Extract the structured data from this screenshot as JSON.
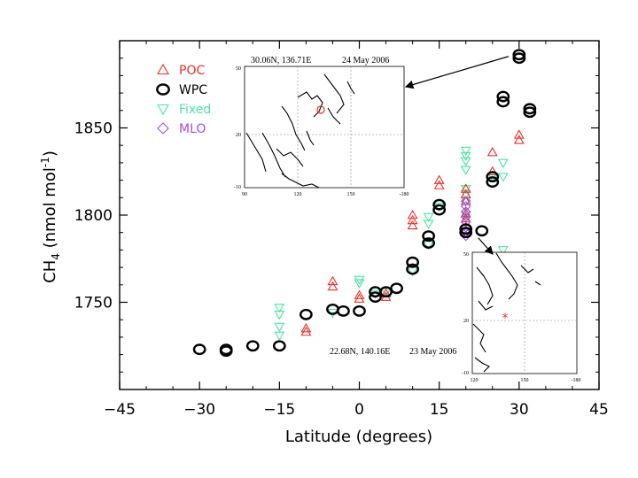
{
  "chart_data": {
    "type": "scatter",
    "xlabel": "Latitude (degrees)",
    "ylabel_main": "CH",
    "ylabel_sub": "4",
    "ylabel_units": " (nmol mol",
    "ylabel_exp": "-1",
    "ylabel_close": ")",
    "xlim": [
      -45,
      45
    ],
    "ylim": [
      1700,
      1900
    ],
    "xticks": [
      -45,
      -30,
      -15,
      0,
      15,
      30,
      45
    ],
    "yticks": [
      1750,
      1800,
      1850
    ],
    "legend_position": "top-left",
    "series": [
      {
        "name": "POC",
        "marker": "triangle-up",
        "color": "#e8302a",
        "points": [
          [
            -10,
            1733
          ],
          [
            -10,
            1735
          ],
          [
            -5,
            1759
          ],
          [
            -5,
            1762
          ],
          [
            0,
            1752
          ],
          [
            0,
            1754
          ],
          [
            5,
            1753
          ],
          [
            5,
            1755
          ],
          [
            10,
            1794
          ],
          [
            10,
            1797
          ],
          [
            10,
            1800
          ],
          [
            15,
            1817
          ],
          [
            15,
            1820
          ],
          [
            20,
            1808
          ],
          [
            20,
            1812
          ],
          [
            20,
            1815
          ],
          [
            25,
            1825
          ],
          [
            25,
            1836
          ],
          [
            30,
            1843
          ],
          [
            30,
            1846
          ],
          [
            20,
            1798
          ],
          [
            20,
            1801
          ]
        ]
      },
      {
        "name": "WPC",
        "marker": "circle",
        "color": "#000000",
        "points": [
          [
            -30,
            1723
          ],
          [
            -25,
            1722
          ],
          [
            -25,
            1723
          ],
          [
            -20,
            1725
          ],
          [
            -15,
            1725
          ],
          [
            -10,
            1743
          ],
          [
            -5,
            1746
          ],
          [
            -3,
            1745
          ],
          [
            0,
            1745
          ],
          [
            3,
            1753
          ],
          [
            3,
            1756
          ],
          [
            5,
            1756
          ],
          [
            7,
            1758
          ],
          [
            10,
            1769
          ],
          [
            10,
            1773
          ],
          [
            13,
            1784
          ],
          [
            13,
            1788
          ],
          [
            15,
            1803
          ],
          [
            15,
            1806
          ],
          [
            20,
            1790
          ],
          [
            20,
            1792
          ],
          [
            23,
            1791
          ],
          [
            25,
            1819
          ],
          [
            25,
            1822
          ],
          [
            27,
            1865
          ],
          [
            27,
            1868
          ],
          [
            30,
            1890
          ],
          [
            30,
            1892
          ],
          [
            32,
            1859
          ],
          [
            32,
            1861
          ]
        ]
      },
      {
        "name": "Fixed",
        "marker": "triangle-down",
        "color": "#4ee3a4",
        "points": [
          [
            -15,
            1731
          ],
          [
            -15,
            1736
          ],
          [
            -15,
            1743
          ],
          [
            -15,
            1747
          ],
          [
            -5,
            1744
          ],
          [
            0,
            1763
          ],
          [
            0,
            1761
          ],
          [
            3,
            1755
          ],
          [
            5,
            1756
          ],
          [
            10,
            1768
          ],
          [
            13,
            1783
          ],
          [
            13,
            1795
          ],
          [
            13,
            1799
          ],
          [
            15,
            1805
          ],
          [
            20,
            1826
          ],
          [
            20,
            1831
          ],
          [
            20,
            1834
          ],
          [
            20,
            1837
          ],
          [
            20,
            1815
          ],
          [
            20,
            1812
          ],
          [
            20,
            1808
          ],
          [
            20,
            1800
          ],
          [
            20,
            1790
          ],
          [
            25,
            1822
          ],
          [
            27,
            1780
          ],
          [
            27,
            1822
          ],
          [
            27,
            1830
          ]
        ]
      },
      {
        "name": "MLO",
        "marker": "diamond",
        "color": "#a64de0",
        "points": [
          [
            20,
            1788
          ],
          [
            20,
            1790
          ],
          [
            20,
            1793
          ],
          [
            20,
            1796
          ],
          [
            20,
            1799
          ],
          [
            20,
            1802
          ],
          [
            20,
            1805
          ],
          [
            20,
            1808
          ]
        ]
      }
    ],
    "insets": [
      {
        "label": "30.06N, 136.71E",
        "date": "24 May 2006",
        "yticks": [
          "50",
          "20",
          "-10"
        ],
        "xticks": [
          "90",
          "120",
          "150",
          "-180"
        ],
        "marker_lon": 136.71,
        "marker_lat": 30.06
      },
      {
        "label": "22.68N, 140.16E",
        "date": "23 May 2006",
        "yticks": [
          "50",
          "20",
          "-10"
        ],
        "xticks": [
          "120",
          "150",
          "-180"
        ],
        "marker_lon": 140.16,
        "marker_lat": 22.68
      }
    ],
    "arrows": [
      {
        "from_point": [
          30,
          1892
        ],
        "to_inset": 0
      },
      {
        "from_point": [
          23,
          1791
        ],
        "to_inset": 1
      }
    ]
  }
}
